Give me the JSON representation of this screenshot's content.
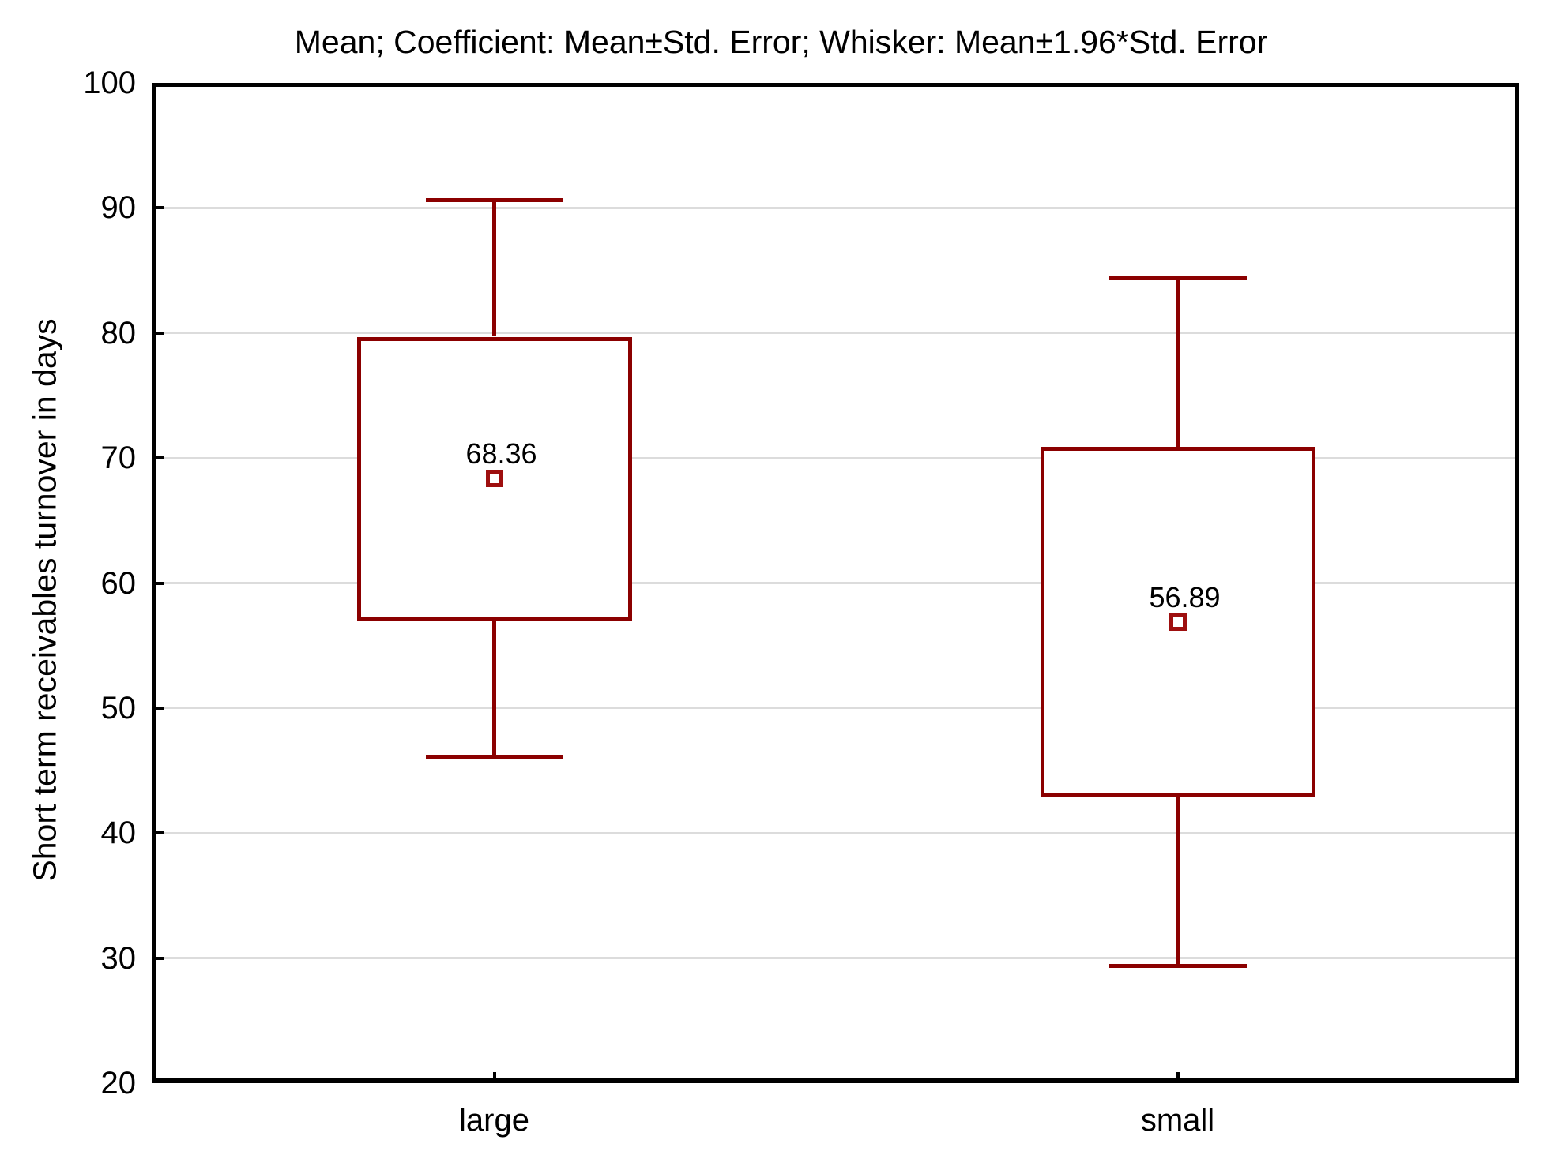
{
  "title": "Mean; Coefficient: Mean±Std. Error; Whisker: Mean±1.96*Std. Error",
  "y_axis": {
    "label": "Short term receivables turnover in days",
    "min": 20,
    "max": 100,
    "step": 10,
    "tick_labels": [
      "20",
      "30",
      "40",
      "50",
      "60",
      "70",
      "80",
      "90",
      "100"
    ]
  },
  "x_axis": {
    "categories": [
      "large",
      "small"
    ]
  },
  "colors": {
    "series": "#8b0000",
    "marker": "#9e0f0f",
    "grid": "#dcdcdc",
    "axis": "#000000",
    "text": "#000000",
    "background": "#ffffff"
  },
  "chart_data": {
    "type": "box",
    "box_type": "mean-stderr",
    "title": "Mean; Coefficient: Mean±Std. Error; Whisker: Mean±1.96*Std. Error",
    "xlabel": "",
    "ylabel": "Short term receivables turnover in days",
    "ylim": [
      20,
      100
    ],
    "ytick_step": 10,
    "grid": "horizontal",
    "legend": "none",
    "categories": [
      "large",
      "small"
    ],
    "series": [
      {
        "category": "large",
        "mean": 68.36,
        "mean_label": "68.36",
        "box_low": 57.0,
        "box_high": 79.7,
        "whisker_low": 46.1,
        "whisker_high": 90.6
      },
      {
        "category": "small",
        "mean": 56.89,
        "mean_label": "56.89",
        "box_low": 42.9,
        "box_high": 70.9,
        "whisker_low": 29.4,
        "whisker_high": 84.4
      }
    ]
  }
}
